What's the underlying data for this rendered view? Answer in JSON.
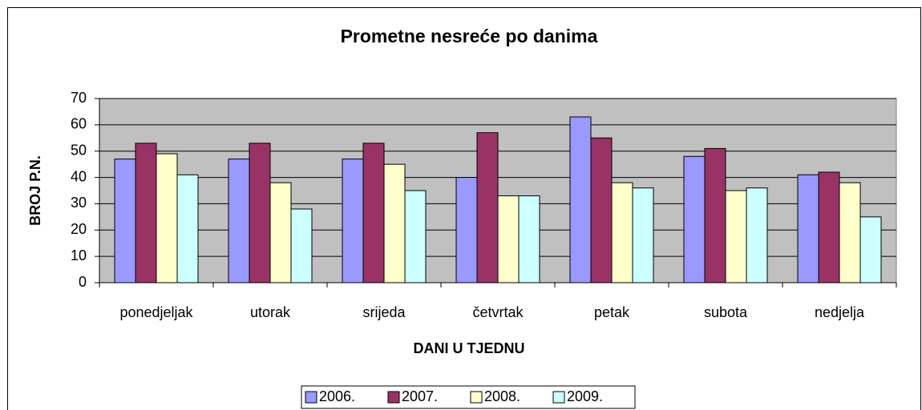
{
  "chart_data": {
    "type": "bar",
    "title": "Prometne nesreće po danima",
    "x_label": "DANI U TJEDNU",
    "y_label": "BROJ P.N.",
    "categories": [
      "ponedjeljak",
      "utorak",
      "srijeda",
      "četvrtak",
      "petak",
      "subota",
      "nedjelja"
    ],
    "series": [
      {
        "name": "2006.",
        "color": "#9999ff",
        "values": [
          47,
          47,
          47,
          40,
          63,
          48,
          41
        ]
      },
      {
        "name": "2007.",
        "color": "#993366",
        "values": [
          53,
          53,
          53,
          57,
          55,
          51,
          42
        ]
      },
      {
        "name": "2008.",
        "color": "#ffffcc",
        "values": [
          49,
          38,
          45,
          33,
          38,
          35,
          38
        ]
      },
      {
        "name": "2009.",
        "color": "#ccffff",
        "values": [
          41,
          28,
          35,
          33,
          36,
          36,
          25
        ]
      }
    ],
    "ylim": [
      0,
      70
    ],
    "yticks": [
      0,
      10,
      20,
      30,
      40,
      50,
      60,
      70
    ],
    "grid": true,
    "legend": "bottom",
    "plot_background": "#c0c0c0"
  }
}
